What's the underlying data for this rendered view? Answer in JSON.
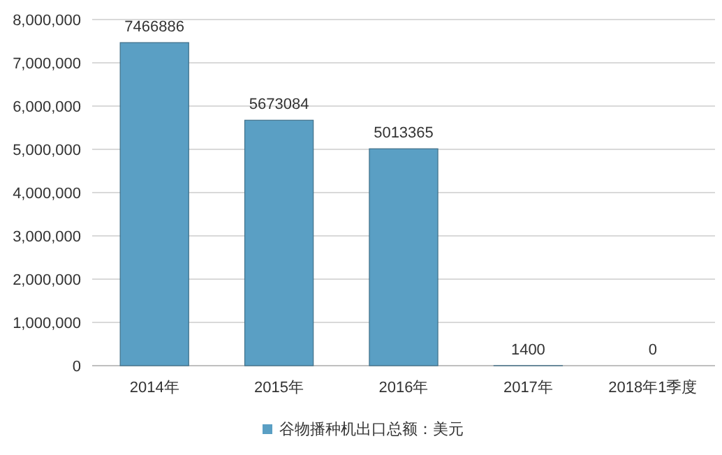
{
  "chart_data": {
    "type": "bar",
    "categories": [
      "2014年",
      "2015年",
      "2016年",
      "2017年",
      "2018年1季度"
    ],
    "series": [
      {
        "name": "谷物播种机出口总额：美元",
        "color": "#5a9fc4",
        "values": [
          7466886,
          5673084,
          5013365,
          1400,
          0
        ]
      }
    ],
    "ylim": [
      0,
      8000000
    ],
    "yticks": [
      0,
      {
        "value": 1000000,
        "label": "1,000,000"
      },
      {
        "value": 2000000,
        "label": "2,000,000"
      },
      {
        "value": 3000000,
        "label": "3,000,000"
      },
      {
        "value": 4000000,
        "label": "4,000,000"
      },
      {
        "value": 5000000,
        "label": "5,000,000"
      },
      {
        "value": 6000000,
        "label": "6,000,000"
      },
      {
        "value": 7000000,
        "label": "7,000,000"
      },
      {
        "value": 8000000,
        "label": "8,000,000"
      }
    ],
    "grid": "y",
    "data_labels": true,
    "legend": "bottom"
  }
}
